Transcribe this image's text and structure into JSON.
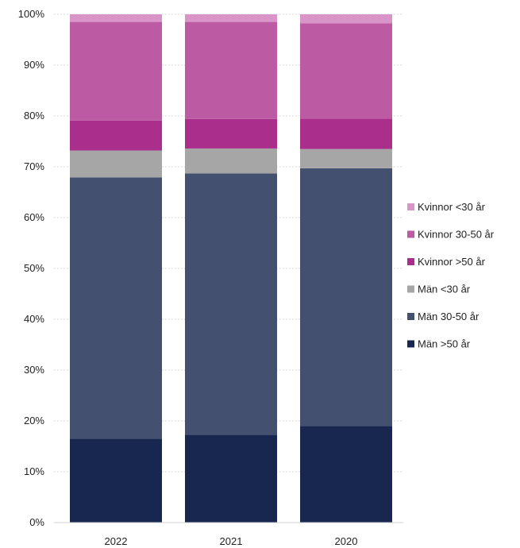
{
  "chart_data": {
    "type": "bar",
    "stacked": true,
    "percent": true,
    "title": "",
    "xlabel": "",
    "ylabel": "",
    "ylim": [
      0,
      100
    ],
    "yticks": [
      "0%",
      "10%",
      "20%",
      "30%",
      "40%",
      "50%",
      "60%",
      "70%",
      "80%",
      "90%",
      "100%"
    ],
    "categories": [
      "2022",
      "2021",
      "2020"
    ],
    "series": [
      {
        "name": "Män >50 år",
        "color": "#172750",
        "values": [
          16.5,
          17.3,
          19.0
        ]
      },
      {
        "name": "Män 30-50 år",
        "color": "#44506f",
        "values": [
          51.4,
          51.4,
          50.7
        ]
      },
      {
        "name": "Män <30 år",
        "color": "#a6a6a6",
        "values": [
          5.3,
          4.9,
          3.8
        ]
      },
      {
        "name": "Kvinnor >50 år",
        "color": "#aa2f8c",
        "values": [
          5.9,
          5.8,
          6.0
        ]
      },
      {
        "name": "Kvinnor 30-50 år",
        "color": "#bc5aa3",
        "values": [
          19.4,
          19.1,
          18.7
        ]
      },
      {
        "name": "Kvinnor <30 år",
        "color": "#d995c7",
        "values": [
          1.5,
          1.5,
          1.8
        ]
      }
    ],
    "legend_position": "right",
    "legend_order": [
      "Kvinnor <30 år",
      "Kvinnor 30-50 år",
      "Kvinnor >50 år",
      "Män <30 år",
      "Män 30-50 år",
      "Män >50 år"
    ],
    "grid": true
  }
}
